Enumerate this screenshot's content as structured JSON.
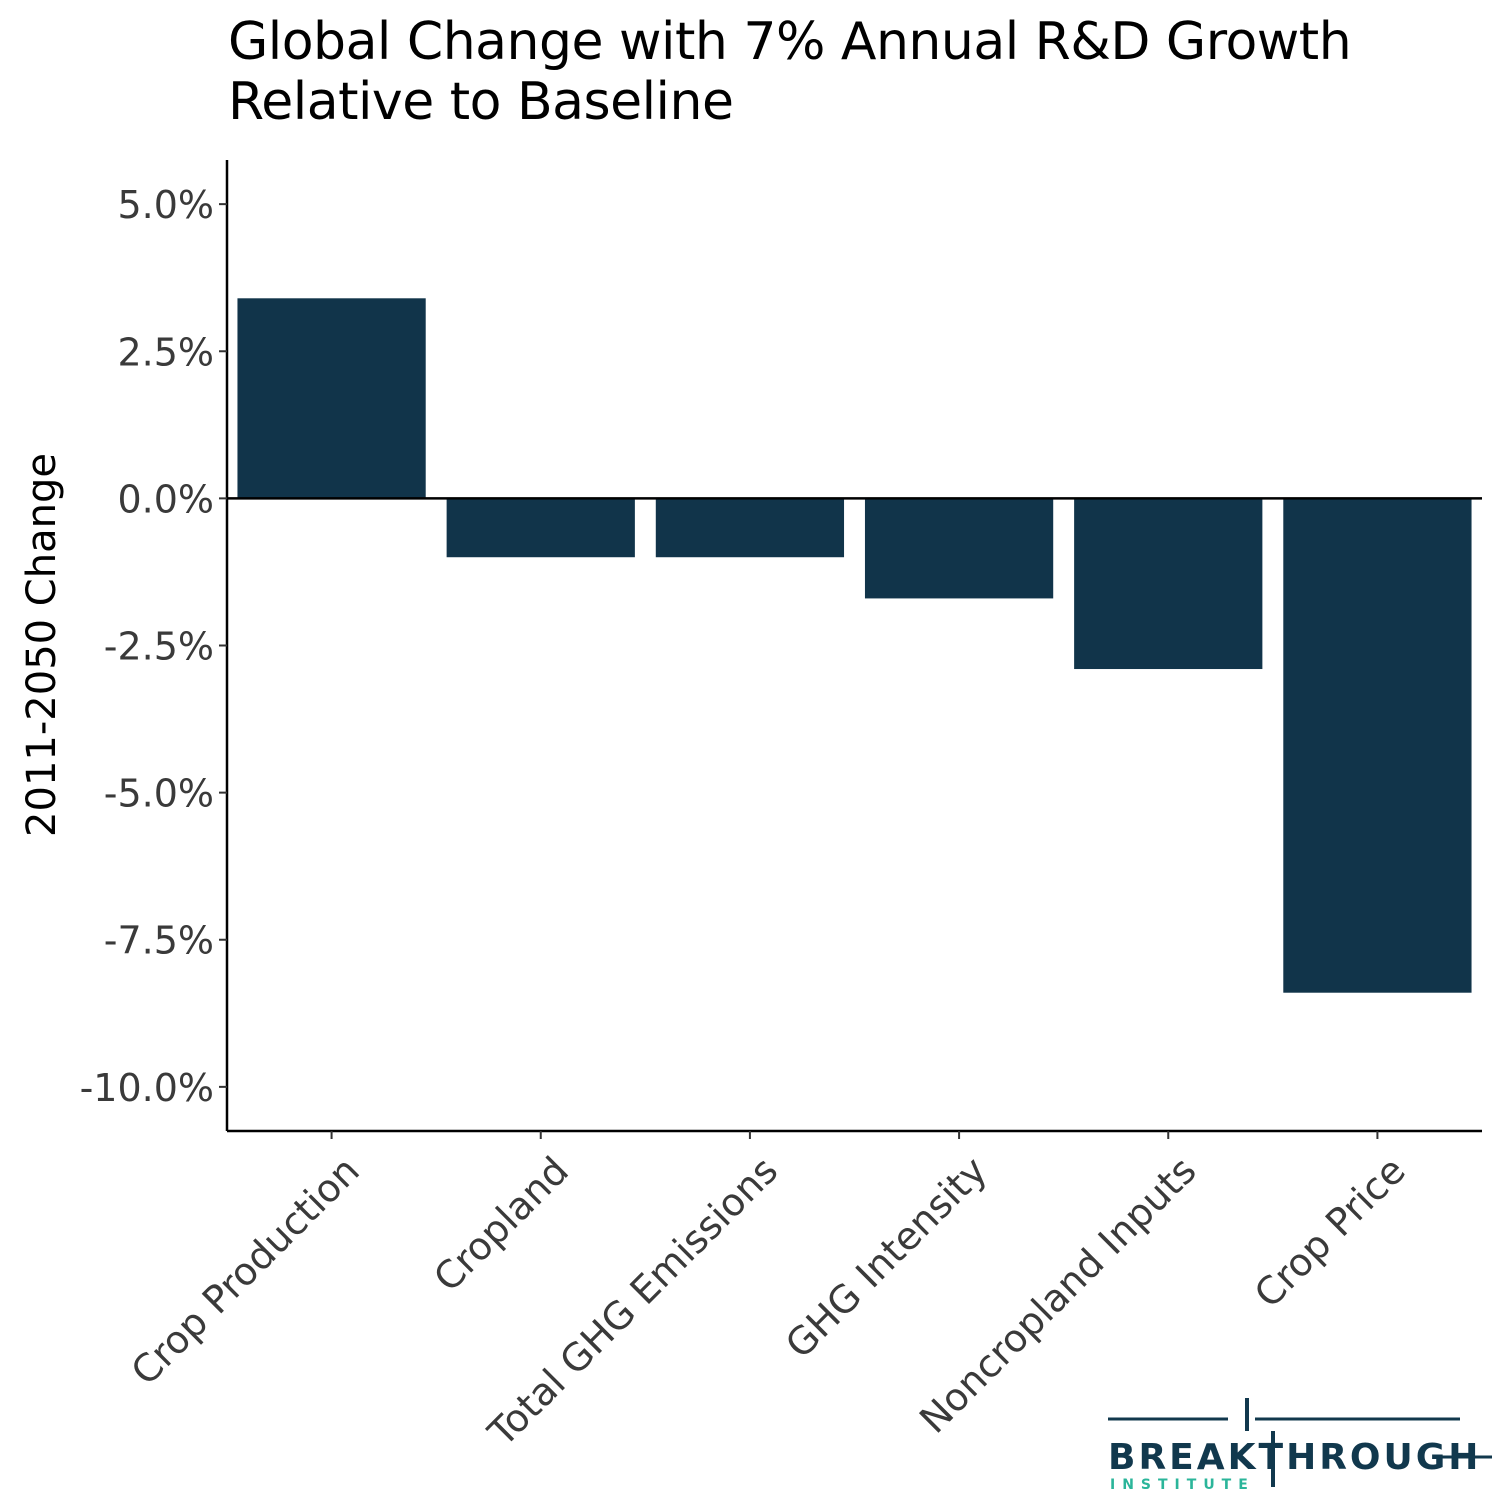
{
  "chart_data": {
    "type": "bar",
    "title": "Global Change with 7% Annual R&D Growth Relative to Baseline",
    "title_lines": [
      "Global Change with 7% Annual R&D Growth",
      "Relative to Baseline"
    ],
    "xlabel": "",
    "ylabel": "2011-2050 Change",
    "categories": [
      "Crop Production",
      "Cropland",
      "Total GHG Emissions",
      "GHG Intensity",
      "Noncropland Inputs",
      "Crop Price"
    ],
    "values": [
      3.4,
      -1.0,
      -1.0,
      -1.7,
      -2.9,
      -8.4
    ],
    "value_unit": "%",
    "ylim": [
      -10.75,
      5.75
    ],
    "yticks": [
      5.0,
      2.5,
      0.0,
      -2.5,
      -5.0,
      -7.5,
      -10.0
    ],
    "ytick_labels": [
      "5.0%",
      "2.5%",
      "0.0%",
      "-2.5%",
      "-5.0%",
      "-7.5%",
      "-10.0%"
    ],
    "grid": false,
    "legend": "none",
    "bar_color": "#11344a",
    "zero_line": true
  },
  "logo": {
    "name": "BREAKTHROUGH",
    "sub": "INSTITUTE",
    "main_color": "#11384d",
    "sub_color": "#2bb59a"
  }
}
